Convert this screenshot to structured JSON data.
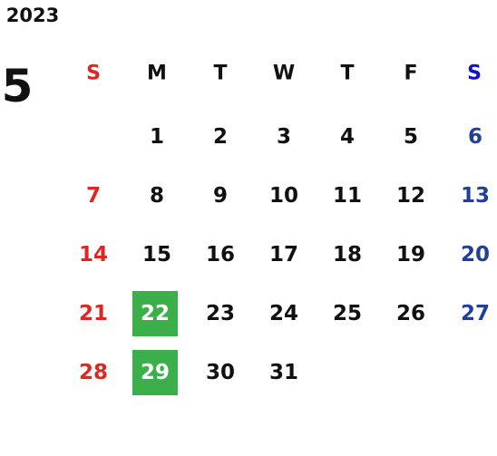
{
  "year": "2023",
  "month": "5",
  "weekdays": [
    "S",
    "M",
    "T",
    "W",
    "T",
    "F",
    "S"
  ],
  "sunday_color": "#e0261e",
  "saturday_header_color": "#1010d0",
  "saturday_color": "#1f3f9a",
  "highlight_color": "#3bb04a",
  "weeks": [
    [
      null,
      {
        "day": 1
      },
      {
        "day": 2
      },
      {
        "day": 3
      },
      {
        "day": 4
      },
      {
        "day": 5
      },
      {
        "day": 6
      }
    ],
    [
      {
        "day": 7
      },
      {
        "day": 8
      },
      {
        "day": 9
      },
      {
        "day": 10
      },
      {
        "day": 11
      },
      {
        "day": 12
      },
      {
        "day": 13
      }
    ],
    [
      {
        "day": 14
      },
      {
        "day": 15
      },
      {
        "day": 16
      },
      {
        "day": 17
      },
      {
        "day": 18
      },
      {
        "day": 19
      },
      {
        "day": 20
      }
    ],
    [
      {
        "day": 21
      },
      {
        "day": 22,
        "highlight": true
      },
      {
        "day": 23
      },
      {
        "day": 24
      },
      {
        "day": 25
      },
      {
        "day": 26
      },
      {
        "day": 27
      }
    ],
    [
      {
        "day": 28
      },
      {
        "day": 29,
        "highlight": true
      },
      {
        "day": 30
      },
      {
        "day": 31
      },
      null,
      null,
      null
    ]
  ]
}
